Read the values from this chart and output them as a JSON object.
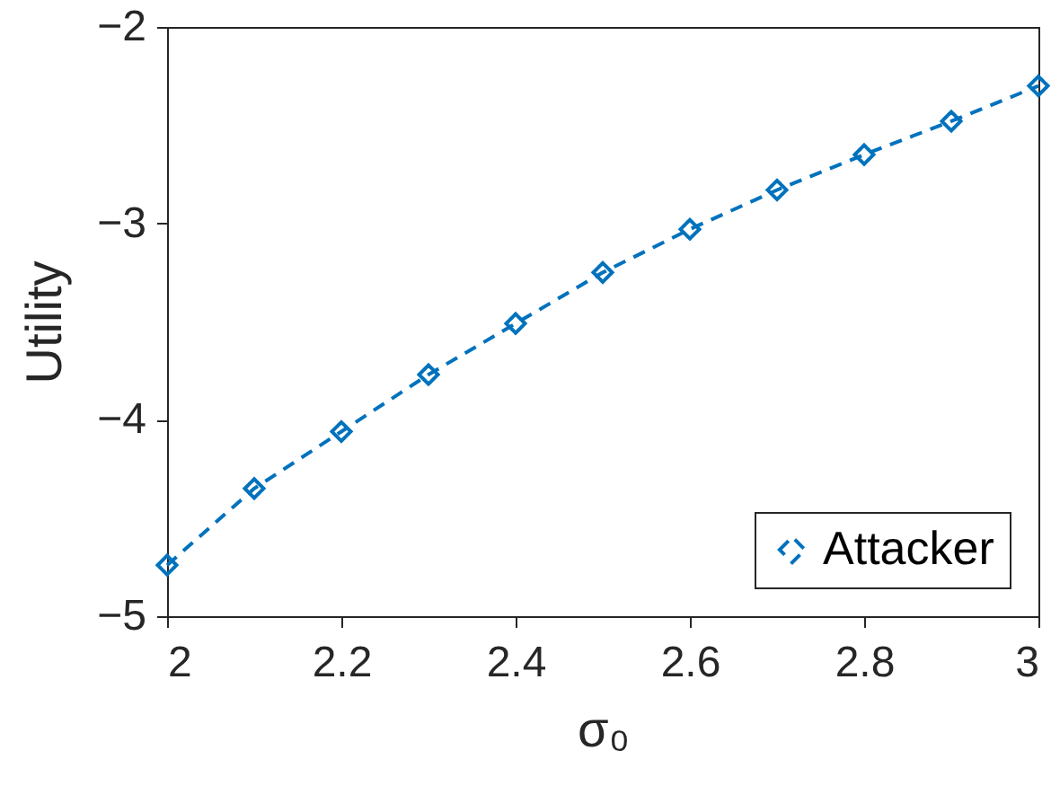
{
  "chart_data": {
    "type": "line",
    "xlabel": "σ₀",
    "ylabel": "Utility",
    "x": [
      2,
      2.1,
      2.2,
      2.3,
      2.4,
      2.5,
      2.6,
      2.7,
      2.8,
      2.9,
      3
    ],
    "series": [
      {
        "name": "Attacker",
        "color": "#0072bd",
        "values": [
          -4.74,
          -4.35,
          -4.06,
          -3.77,
          -3.51,
          -3.25,
          -3.03,
          -2.83,
          -2.65,
          -2.48,
          -2.3
        ]
      }
    ],
    "xlim": [
      2,
      3
    ],
    "xticks": [
      2,
      2.2,
      2.4,
      2.6,
      2.8,
      3
    ],
    "ylim": [
      -5,
      -2
    ],
    "yticks": [
      -5,
      -4,
      -3,
      -2
    ],
    "marker": "diamond",
    "line_style": "dashed",
    "legend": "bottom right",
    "grid": false
  }
}
